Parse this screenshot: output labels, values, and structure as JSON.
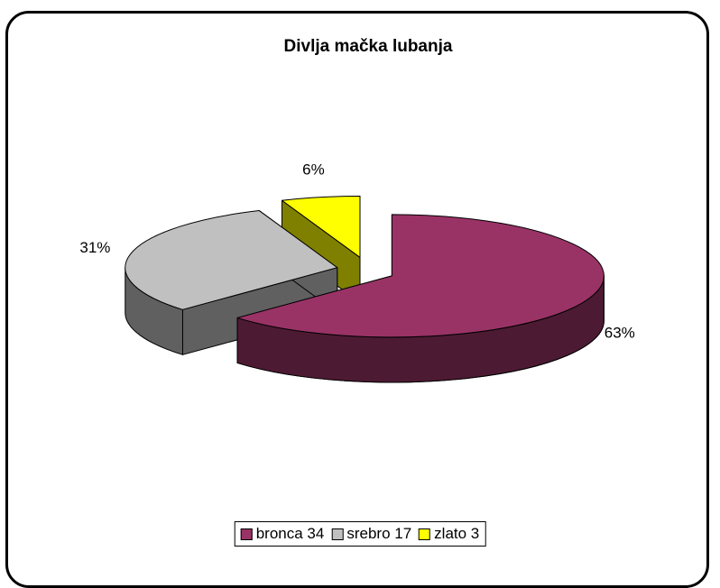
{
  "chart_data": {
    "type": "pie3d",
    "title": "Divlja mačka lubanja",
    "categories": [
      "bronca 34",
      "srebro 17",
      "zlato 3"
    ],
    "values": [
      63,
      31,
      6
    ],
    "value_labels": [
      "63%",
      "31%",
      "6%"
    ],
    "colors": [
      "#993366",
      "#c0c0c0",
      "#ffff00"
    ],
    "side_colors": [
      "#4d1a33",
      "#606060",
      "#808000"
    ],
    "legend": "bottom"
  }
}
